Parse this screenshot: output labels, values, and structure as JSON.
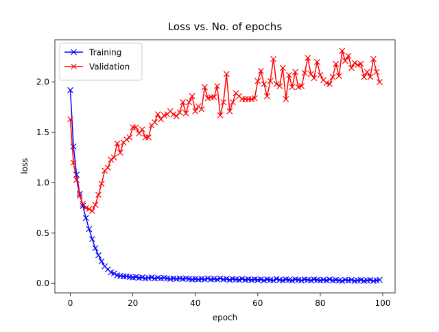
{
  "chart_data": {
    "type": "line",
    "title": "Loss vs. No. of epochs",
    "x_label": "epoch",
    "y_label": "loss",
    "x": [
      0,
      1,
      2,
      3,
      4,
      5,
      6,
      7,
      8,
      9,
      10,
      11,
      12,
      13,
      14,
      15,
      16,
      17,
      18,
      19,
      20,
      21,
      22,
      23,
      24,
      25,
      26,
      27,
      28,
      29,
      30,
      31,
      32,
      33,
      34,
      35,
      36,
      37,
      38,
      39,
      40,
      41,
      42,
      43,
      44,
      45,
      46,
      47,
      48,
      49,
      50,
      51,
      52,
      53,
      54,
      55,
      56,
      57,
      58,
      59,
      60,
      61,
      62,
      63,
      64,
      65,
      66,
      67,
      68,
      69,
      70,
      71,
      72,
      73,
      74,
      75,
      76,
      77,
      78,
      79,
      80,
      81,
      82,
      83,
      84,
      85,
      86,
      87,
      88,
      89,
      90,
      91,
      92,
      93,
      94,
      95,
      96,
      97,
      98,
      99
    ],
    "series": [
      {
        "name": "Training",
        "color": "#0000ff",
        "marker": "x",
        "values": [
          1.92,
          1.36,
          1.08,
          0.89,
          0.77,
          0.65,
          0.54,
          0.44,
          0.35,
          0.28,
          0.22,
          0.17,
          0.14,
          0.11,
          0.1,
          0.08,
          0.075,
          0.07,
          0.07,
          0.065,
          0.06,
          0.065,
          0.055,
          0.06,
          0.05,
          0.055,
          0.06,
          0.05,
          0.055,
          0.05,
          0.055,
          0.05,
          0.045,
          0.05,
          0.045,
          0.05,
          0.045,
          0.05,
          0.045,
          0.04,
          0.045,
          0.04,
          0.045,
          0.04,
          0.05,
          0.04,
          0.045,
          0.04,
          0.05,
          0.04,
          0.045,
          0.035,
          0.045,
          0.04,
          0.035,
          0.045,
          0.035,
          0.04,
          0.035,
          0.04,
          0.035,
          0.04,
          0.03,
          0.04,
          0.035,
          0.03,
          0.045,
          0.035,
          0.03,
          0.04,
          0.035,
          0.03,
          0.04,
          0.035,
          0.03,
          0.04,
          0.035,
          0.03,
          0.04,
          0.035,
          0.03,
          0.035,
          0.03,
          0.04,
          0.03,
          0.035,
          0.03,
          0.025,
          0.035,
          0.03,
          0.035,
          0.025,
          0.03,
          0.035,
          0.025,
          0.03,
          0.035,
          0.025,
          0.03,
          0.035
        ]
      },
      {
        "name": "Validation",
        "color": "#ff0000",
        "marker": "x",
        "values": [
          1.63,
          1.2,
          1.03,
          0.87,
          0.79,
          0.75,
          0.74,
          0.72,
          0.78,
          0.88,
          0.99,
          1.12,
          1.15,
          1.23,
          1.25,
          1.39,
          1.3,
          1.4,
          1.43,
          1.45,
          1.55,
          1.55,
          1.49,
          1.53,
          1.45,
          1.45,
          1.57,
          1.6,
          1.68,
          1.63,
          1.67,
          1.68,
          1.71,
          1.68,
          1.66,
          1.7,
          1.8,
          1.69,
          1.8,
          1.86,
          1.71,
          1.76,
          1.73,
          1.95,
          1.84,
          1.85,
          1.85,
          1.96,
          1.67,
          1.8,
          2.08,
          1.71,
          1.8,
          1.89,
          1.86,
          1.83,
          1.83,
          1.83,
          1.83,
          1.84,
          2.01,
          2.11,
          1.98,
          1.86,
          2.01,
          2.23,
          1.98,
          1.96,
          2.14,
          1.83,
          2.07,
          1.95,
          2.1,
          1.95,
          1.96,
          2.09,
          2.24,
          2.08,
          2.04,
          2.2,
          2.07,
          2.02,
          1.99,
          1.98,
          2.05,
          2.18,
          2.06,
          2.31,
          2.21,
          2.26,
          2.14,
          2.19,
          2.17,
          2.18,
          2.05,
          2.1,
          2.05,
          2.23,
          2.1,
          2.0
        ]
      }
    ],
    "xlim": [
      -4.95,
      103.95
    ],
    "xticks": [
      0,
      20,
      40,
      60,
      80,
      100
    ],
    "ylim": [
      -0.094,
      2.42
    ],
    "yticks": [
      {
        "value": 0,
        "label": "0.0"
      },
      {
        "value": 0.5,
        "label": "0.5"
      },
      {
        "value": 1,
        "label": "1.0"
      },
      {
        "value": 1.5,
        "label": "1.5"
      },
      {
        "value": 2,
        "label": "2.0"
      }
    ],
    "grid": false,
    "legend": "upper-left"
  }
}
